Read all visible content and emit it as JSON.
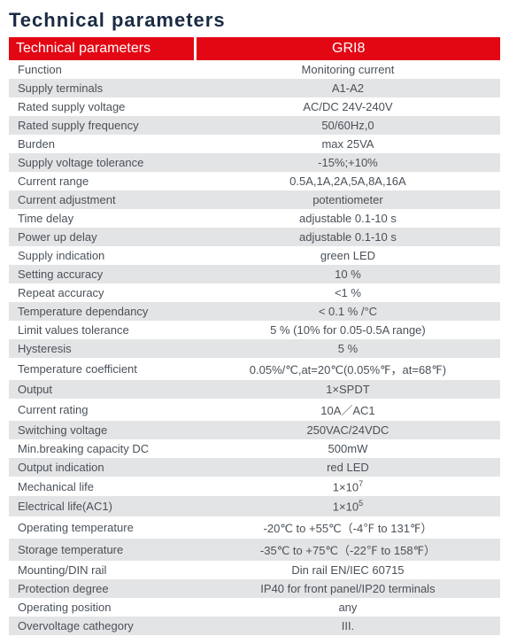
{
  "title": "Technical parameters",
  "header": {
    "left": "Technical parameters",
    "right": "GRI8"
  },
  "colors": {
    "accent": "#e30613",
    "title": "#1b2b44",
    "text": "#4a5158",
    "shade": "#e3e4e5",
    "bg": "#ffffff"
  },
  "rows": [
    {
      "label": "Function",
      "value": "Monitoring current",
      "shade": false
    },
    {
      "label": "Supply terminals",
      "value": "A1-A2",
      "shade": true
    },
    {
      "label": "Rated supply voltage",
      "value": "AC/DC 24V-240V",
      "shade": false
    },
    {
      "label": "Rated supply frequency",
      "value": "50/60Hz,0",
      "shade": true
    },
    {
      "label": "Burden",
      "value": "max 25VA",
      "shade": false
    },
    {
      "label": "Supply voltage tolerance",
      "value": "-15%;+10%",
      "shade": true
    },
    {
      "label": "Current range",
      "value": "0.5A,1A,2A,5A,8A,16A",
      "shade": false
    },
    {
      "label": "Current adjustment",
      "value": "potentiometer",
      "shade": true
    },
    {
      "label": "Time delay",
      "value": "adjustable 0.1-10 s",
      "shade": false
    },
    {
      "label": "Power up delay",
      "value": "adjustable 0.1-10 s",
      "shade": true
    },
    {
      "label": "Supply indication",
      "value": "green LED",
      "shade": false
    },
    {
      "label": "Setting accuracy",
      "value": "10 %",
      "shade": true
    },
    {
      "label": "Repeat accuracy",
      "value": "<1 %",
      "shade": false
    },
    {
      "label": "Temperature dependancy",
      "value": "< 0.1 % /°C",
      "shade": true
    },
    {
      "label": "Limit values tolerance",
      "value": "5 % (10% for 0.05-0.5A range)",
      "shade": false
    },
    {
      "label": "Hysteresis",
      "value": "5 %",
      "shade": true
    },
    {
      "label": "Temperature coefficient",
      "value": "0.05%/℃,at=20℃(0.05%℉，at=68℉)",
      "shade": false
    },
    {
      "label": "Output",
      "value": "1×SPDT",
      "shade": true
    },
    {
      "label": "Current rating",
      "value": "10A／AC1",
      "shade": false
    },
    {
      "label": "Switching voltage",
      "value": "250VAC/24VDC",
      "shade": true
    },
    {
      "label": "Min.breaking capacity DC",
      "value": "500mW",
      "shade": false
    },
    {
      "label": "Output indication",
      "value": "red LED",
      "shade": true
    },
    {
      "label": "Mechanical life",
      "value": "1×10⁷",
      "shade": false,
      "html": "1×10<sup>7</sup>"
    },
    {
      "label": "Electrical life(AC1)",
      "value": "1×10⁵",
      "shade": true,
      "html": "1×10<sup>5</sup>"
    },
    {
      "label": "Operating temperature",
      "value": "-20℃ to +55℃（-4℉ to 131℉）",
      "shade": false
    },
    {
      "label": "Storage temperature",
      "value": "-35℃ to +75℃（-22℉ to 158℉）",
      "shade": true
    },
    {
      "label": "Mounting/DIN rail",
      "value": "Din rail EN/IEC 60715",
      "shade": false
    },
    {
      "label": "Protection degree",
      "value": "IP40 for front panel/IP20 terminals",
      "shade": true
    },
    {
      "label": "Operating position",
      "value": "any",
      "shade": false
    },
    {
      "label": "Overvoltage cathegory",
      "value": "III.",
      "shade": true
    }
  ]
}
